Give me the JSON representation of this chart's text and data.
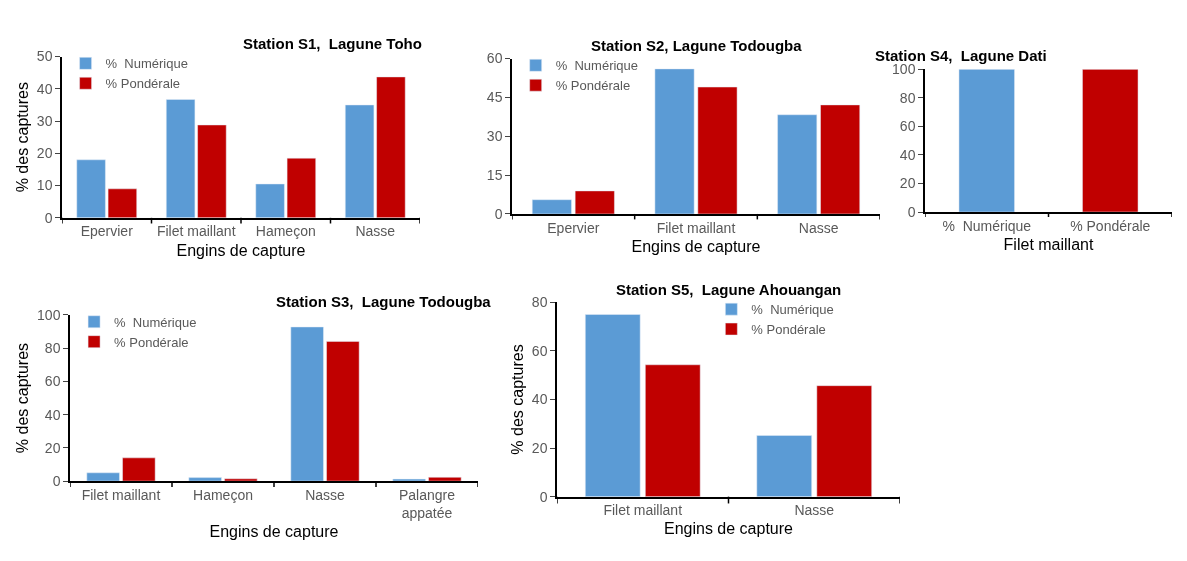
{
  "chart_data": [
    {
      "type": "bar",
      "title": "Station S1,  Lagune Toho",
      "xlabel": "Engins de capture",
      "ylabel": "% des captures",
      "categories": [
        "Epervier",
        "Filet maillant",
        "Hameçon",
        "Nasse"
      ],
      "ylim": [
        0,
        50
      ],
      "yticks": [
        0,
        10,
        20,
        30,
        40,
        50
      ],
      "legend": "top left",
      "series": [
        {
          "name": "%  Numérique",
          "color": "#5b9bd5",
          "values": [
            18,
            36.7,
            10.5,
            35
          ]
        },
        {
          "name": "% Pondérale",
          "color": "#c00000",
          "values": [
            9,
            28.8,
            18.5,
            43.7
          ]
        }
      ]
    },
    {
      "type": "bar",
      "title": "Station S2, Lagune Todougba",
      "xlabel": "Engins de capture",
      "categories": [
        "Epervier",
        "Filet maillant",
        "Nasse"
      ],
      "ylim": [
        0,
        60
      ],
      "yticks": [
        0,
        15,
        30,
        45,
        60
      ],
      "legend": "top left",
      "series": [
        {
          "name": "%  Numérique",
          "color": "#5b9bd5",
          "values": [
            5.5,
            56,
            38.3
          ]
        },
        {
          "name": "% Pondérale",
          "color": "#c00000",
          "values": [
            8.9,
            49,
            42.1
          ]
        }
      ]
    },
    {
      "type": "bar",
      "title": "Station S4,  Lagune Dati",
      "xlabel": "Filet maillant",
      "categories": [
        "%  Numérique",
        "% Pondérale"
      ],
      "ylim": [
        0,
        100
      ],
      "yticks": [
        0,
        20,
        40,
        60,
        80,
        100
      ],
      "values": [
        100,
        100
      ],
      "colors": [
        "#5b9bd5",
        "#c00000"
      ]
    },
    {
      "type": "bar",
      "title": "Station S3,  Lagune Todougba",
      "xlabel": "Engins de capture",
      "ylabel": "% des captures",
      "categories": [
        "Filet maillant",
        "Hameçon",
        "Nasse",
        "Palangre\nappatée"
      ],
      "ylim": [
        0,
        100
      ],
      "yticks": [
        0,
        20,
        40,
        60,
        80,
        100
      ],
      "legend": "top left",
      "series": [
        {
          "name": "%  Numérique",
          "color": "#5b9bd5",
          "values": [
            5,
            2.1,
            92.8,
            1.2
          ]
        },
        {
          "name": "% Pondérale",
          "color": "#c00000",
          "values": [
            14,
            1.4,
            84.1,
            2.3
          ]
        }
      ]
    },
    {
      "type": "bar",
      "title": "Station S5,  Lagune Ahouangan",
      "xlabel": "Engins de capture",
      "ylabel": "% des captures",
      "categories": [
        "Filet maillant",
        "Nasse"
      ],
      "ylim": [
        0,
        80
      ],
      "yticks": [
        0,
        20,
        40,
        60,
        80
      ],
      "legend": "top right",
      "series": [
        {
          "name": "%  Numérique",
          "color": "#5b9bd5",
          "values": [
            75,
            25.2
          ]
        },
        {
          "name": "% Pondérale",
          "color": "#c00000",
          "values": [
            54.3,
            45.7
          ]
        }
      ]
    }
  ]
}
